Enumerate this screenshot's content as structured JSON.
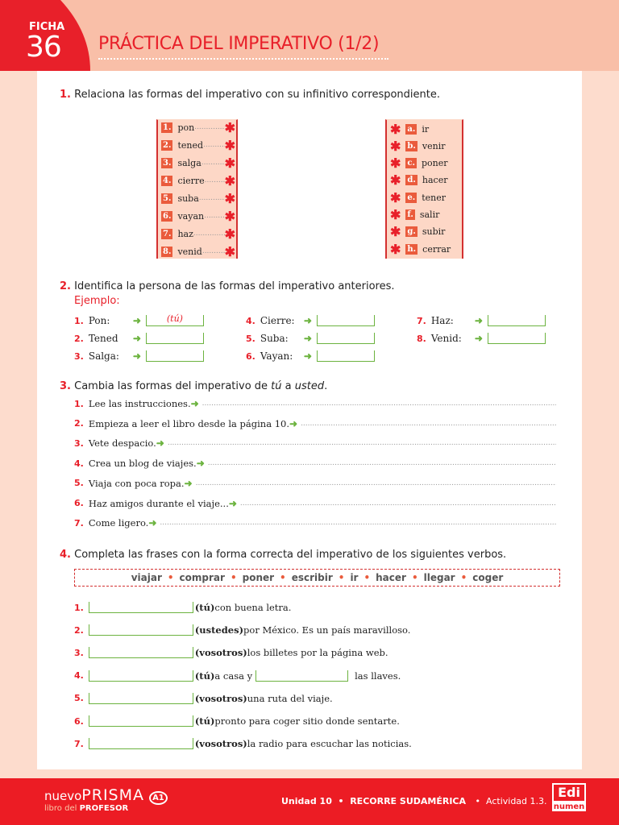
{
  "header": {
    "ficha_label": "FICHA",
    "ficha_number": "36",
    "title": "PRÁCTICA DEL IMPERATIVO (1/2)"
  },
  "ex1": {
    "number": "1.",
    "instruction": "Relaciona las formas del imperativo con su infinitivo correspondiente.",
    "left": [
      {
        "k": "1.",
        "w": "pon"
      },
      {
        "k": "2.",
        "w": "tened"
      },
      {
        "k": "3.",
        "w": "salga"
      },
      {
        "k": "4.",
        "w": "cierre"
      },
      {
        "k": "5.",
        "w": "suba"
      },
      {
        "k": "6.",
        "w": "vayan"
      },
      {
        "k": "7.",
        "w": "haz"
      },
      {
        "k": "8.",
        "w": "venid"
      }
    ],
    "right": [
      {
        "k": "a.",
        "w": "ir"
      },
      {
        "k": "b.",
        "w": "venir"
      },
      {
        "k": "c.",
        "w": "poner"
      },
      {
        "k": "d.",
        "w": "hacer"
      },
      {
        "k": "e.",
        "w": "tener"
      },
      {
        "k": "f.",
        "w": "salir"
      },
      {
        "k": "g.",
        "w": "subir"
      },
      {
        "k": "h.",
        "w": "cerrar"
      }
    ]
  },
  "ex2": {
    "number": "2.",
    "instruction": "Identifica la persona de las formas del imperativo anteriores.",
    "example_label": "Ejemplo:",
    "items": [
      {
        "k": "1.",
        "w": "Pon:",
        "a": "(tú)"
      },
      {
        "k": "2.",
        "w": "Tened",
        "a": ""
      },
      {
        "k": "3.",
        "w": "Salga:",
        "a": ""
      },
      {
        "k": "4.",
        "w": "Cierre:",
        "a": ""
      },
      {
        "k": "5.",
        "w": "Suba:",
        "a": ""
      },
      {
        "k": "6.",
        "w": "Vayan:",
        "a": ""
      },
      {
        "k": "7.",
        "w": "Haz:",
        "a": ""
      },
      {
        "k": "8.",
        "w": "Venid:",
        "a": ""
      }
    ]
  },
  "ex3": {
    "number": "3.",
    "instruction_pre": "Cambia las formas del imperativo de ",
    "tu": "tú",
    "instruction_mid": " a ",
    "usted": "usted",
    "items": [
      {
        "k": "1.",
        "t": "Lee las instrucciones."
      },
      {
        "k": "2.",
        "t": "Empieza a leer el libro desde la página 10."
      },
      {
        "k": "3.",
        "t": "Vete despacio."
      },
      {
        "k": "4.",
        "t": "Crea un blog de viajes."
      },
      {
        "k": "5.",
        "t": "Viaja con poca ropa."
      },
      {
        "k": "6.",
        "t": "Haz amigos durante el viaje..."
      },
      {
        "k": "7.",
        "t": "Come ligero."
      }
    ]
  },
  "ex4": {
    "number": "4.",
    "instruction": "Completa las frases con la forma correcta del imperativo de los siguientes verbos.",
    "verbs": [
      "viajar",
      "comprar",
      "poner",
      "escribir",
      "ir",
      "hacer",
      "llegar",
      "coger"
    ],
    "items": [
      {
        "k": "1.",
        "p": "(tú)",
        "t": " con buena letra."
      },
      {
        "k": "2.",
        "p": "(ustedes)",
        "t": " por México. Es un país maravilloso."
      },
      {
        "k": "3.",
        "p": "(vosotros)",
        "t": " los billetes por la página web."
      },
      {
        "k": "4.",
        "p": "(tú)",
        "t": " a casa y",
        "t2": "las llaves."
      },
      {
        "k": "5.",
        "p": "(vosotros)",
        "t": " una ruta del viaje."
      },
      {
        "k": "6.",
        "p": "(tú)",
        "t": " pronto para coger sitio donde sentarte."
      },
      {
        "k": "7.",
        "p": "(vosotros)",
        "t": " la radio para escuchar las noticias."
      }
    ]
  },
  "footer": {
    "brand_nuevo": "nuevo",
    "brand_prisma": "PRISMA",
    "level": "A1",
    "libro": "libro del",
    "profesor": "PROFESOR",
    "unidad": "Unidad 10",
    "section": "RECORRE SUDAMÉRICA",
    "actividad": "Actividad 1.3.",
    "publisher_top": "Edi",
    "publisher_bottom": "numen"
  },
  "colors": {
    "accent": "#e8202a",
    "header_bg": "#f9bfa8",
    "answer_line": "#6cb33f",
    "footer_bg": "#ec1c24"
  }
}
